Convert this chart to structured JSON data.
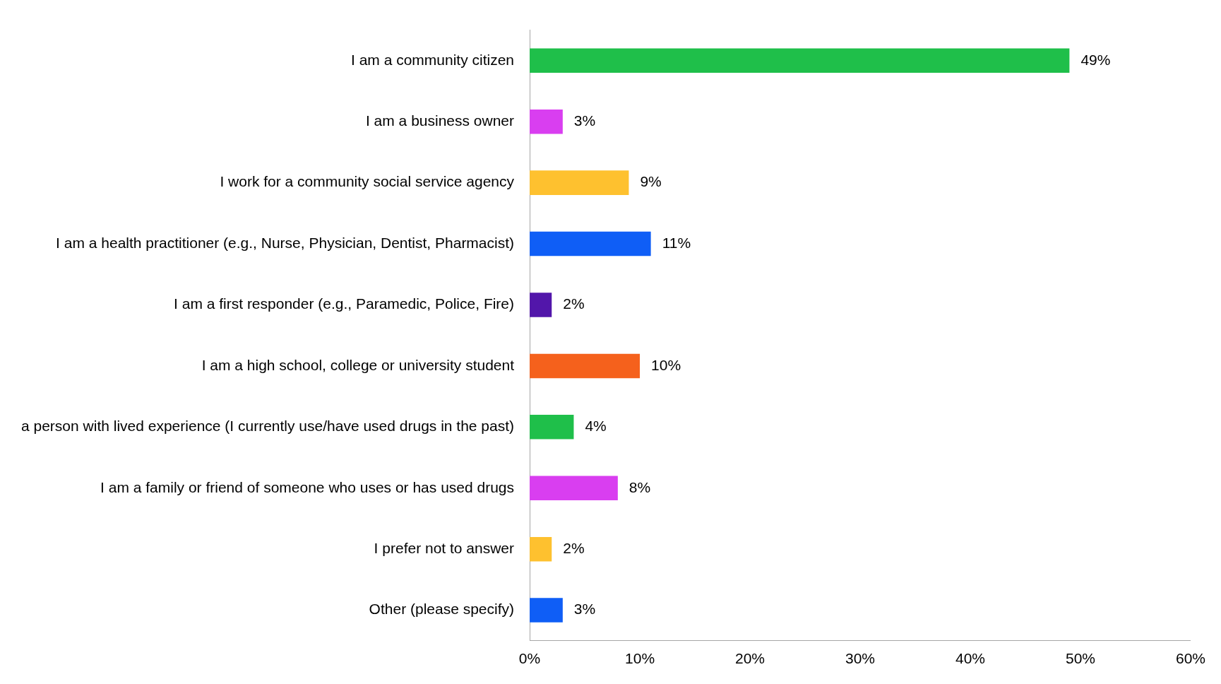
{
  "chart_data": {
    "type": "bar",
    "orientation": "horizontal",
    "categories": [
      "I am a community citizen",
      "I am a business owner",
      "I work for a community social service agency",
      "I am a health practitioner (e.g., Nurse, Physician, Dentist, Pharmacist)",
      "I am a first responder (e.g., Paramedic, Police, Fire)",
      "I am a high school, college or university student",
      "a person with lived experience (I currently use/have used drugs in the past)",
      "I am a family or friend of someone who uses or has used drugs",
      "I prefer not to answer",
      "Other (please specify)"
    ],
    "values": [
      49,
      3,
      9,
      11,
      2,
      10,
      4,
      8,
      2,
      3
    ],
    "value_labels": [
      "49%",
      "3%",
      "9%",
      "11%",
      "2%",
      "10%",
      "4%",
      "8%",
      "2%",
      "3%"
    ],
    "colors": [
      "#1fbf4a",
      "#d93ef0",
      "#fec12f",
      "#0f5ef6",
      "#5216aa",
      "#f5611c",
      "#1fbf4a",
      "#d93ef0",
      "#fec12f",
      "#0f5ef6"
    ],
    "xlim": [
      0,
      60
    ],
    "xticks": [
      {
        "value": 0,
        "label": "0%"
      },
      {
        "value": 10,
        "label": "10%"
      },
      {
        "value": 20,
        "label": "20%"
      },
      {
        "value": 30,
        "label": "30%"
      },
      {
        "value": 40,
        "label": "40%"
      },
      {
        "value": 50,
        "label": "50%"
      },
      {
        "value": 60,
        "label": "60%"
      }
    ],
    "grid": false,
    "legend": false
  }
}
